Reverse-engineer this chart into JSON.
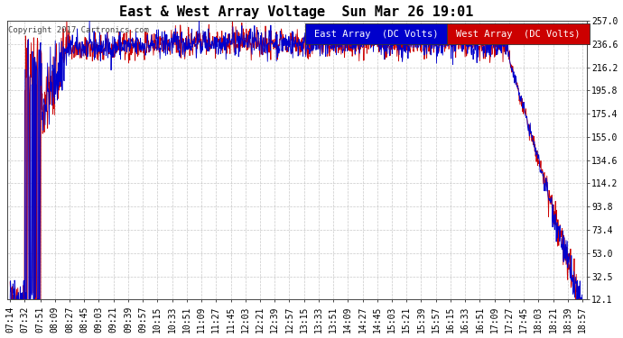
{
  "title": "East & West Array Voltage  Sun Mar 26 19:01",
  "copyright": "Copyright 2017 Cartronics.com",
  "east_label": "East Array  (DC Volts)",
  "west_label": "West Array  (DC Volts)",
  "east_color": "#0000cc",
  "west_color": "#cc0000",
  "background_color": "#ffffff",
  "plot_bg_color": "#ffffff",
  "grid_color": "#bbbbbb",
  "ylim": [
    12.1,
    257.0
  ],
  "yticks": [
    12.1,
    32.5,
    53.0,
    73.4,
    93.8,
    114.2,
    134.6,
    155.0,
    175.4,
    195.8,
    216.2,
    236.6,
    257.0
  ],
  "xtick_labels": [
    "07:14",
    "07:32",
    "07:51",
    "08:09",
    "08:27",
    "08:45",
    "09:03",
    "09:21",
    "09:39",
    "09:57",
    "10:15",
    "10:33",
    "10:51",
    "11:09",
    "11:27",
    "11:45",
    "12:03",
    "12:21",
    "12:39",
    "12:57",
    "13:15",
    "13:33",
    "13:51",
    "14:09",
    "14:27",
    "14:45",
    "15:03",
    "15:21",
    "15:39",
    "15:57",
    "16:15",
    "16:33",
    "16:51",
    "17:09",
    "17:27",
    "17:45",
    "18:03",
    "18:21",
    "18:39",
    "18:57"
  ],
  "xtick_minutes": [
    434,
    452,
    471,
    489,
    507,
    525,
    543,
    561,
    579,
    597,
    615,
    633,
    651,
    669,
    687,
    705,
    723,
    741,
    759,
    777,
    795,
    813,
    831,
    849,
    867,
    885,
    903,
    921,
    939,
    957,
    975,
    993,
    1011,
    1029,
    1047,
    1065,
    1083,
    1101,
    1119,
    1137
  ],
  "x_start_minutes": 430,
  "x_end_minutes": 1142,
  "line_width": 0.6,
  "title_fontsize": 11,
  "tick_fontsize": 7,
  "legend_fontsize": 8
}
